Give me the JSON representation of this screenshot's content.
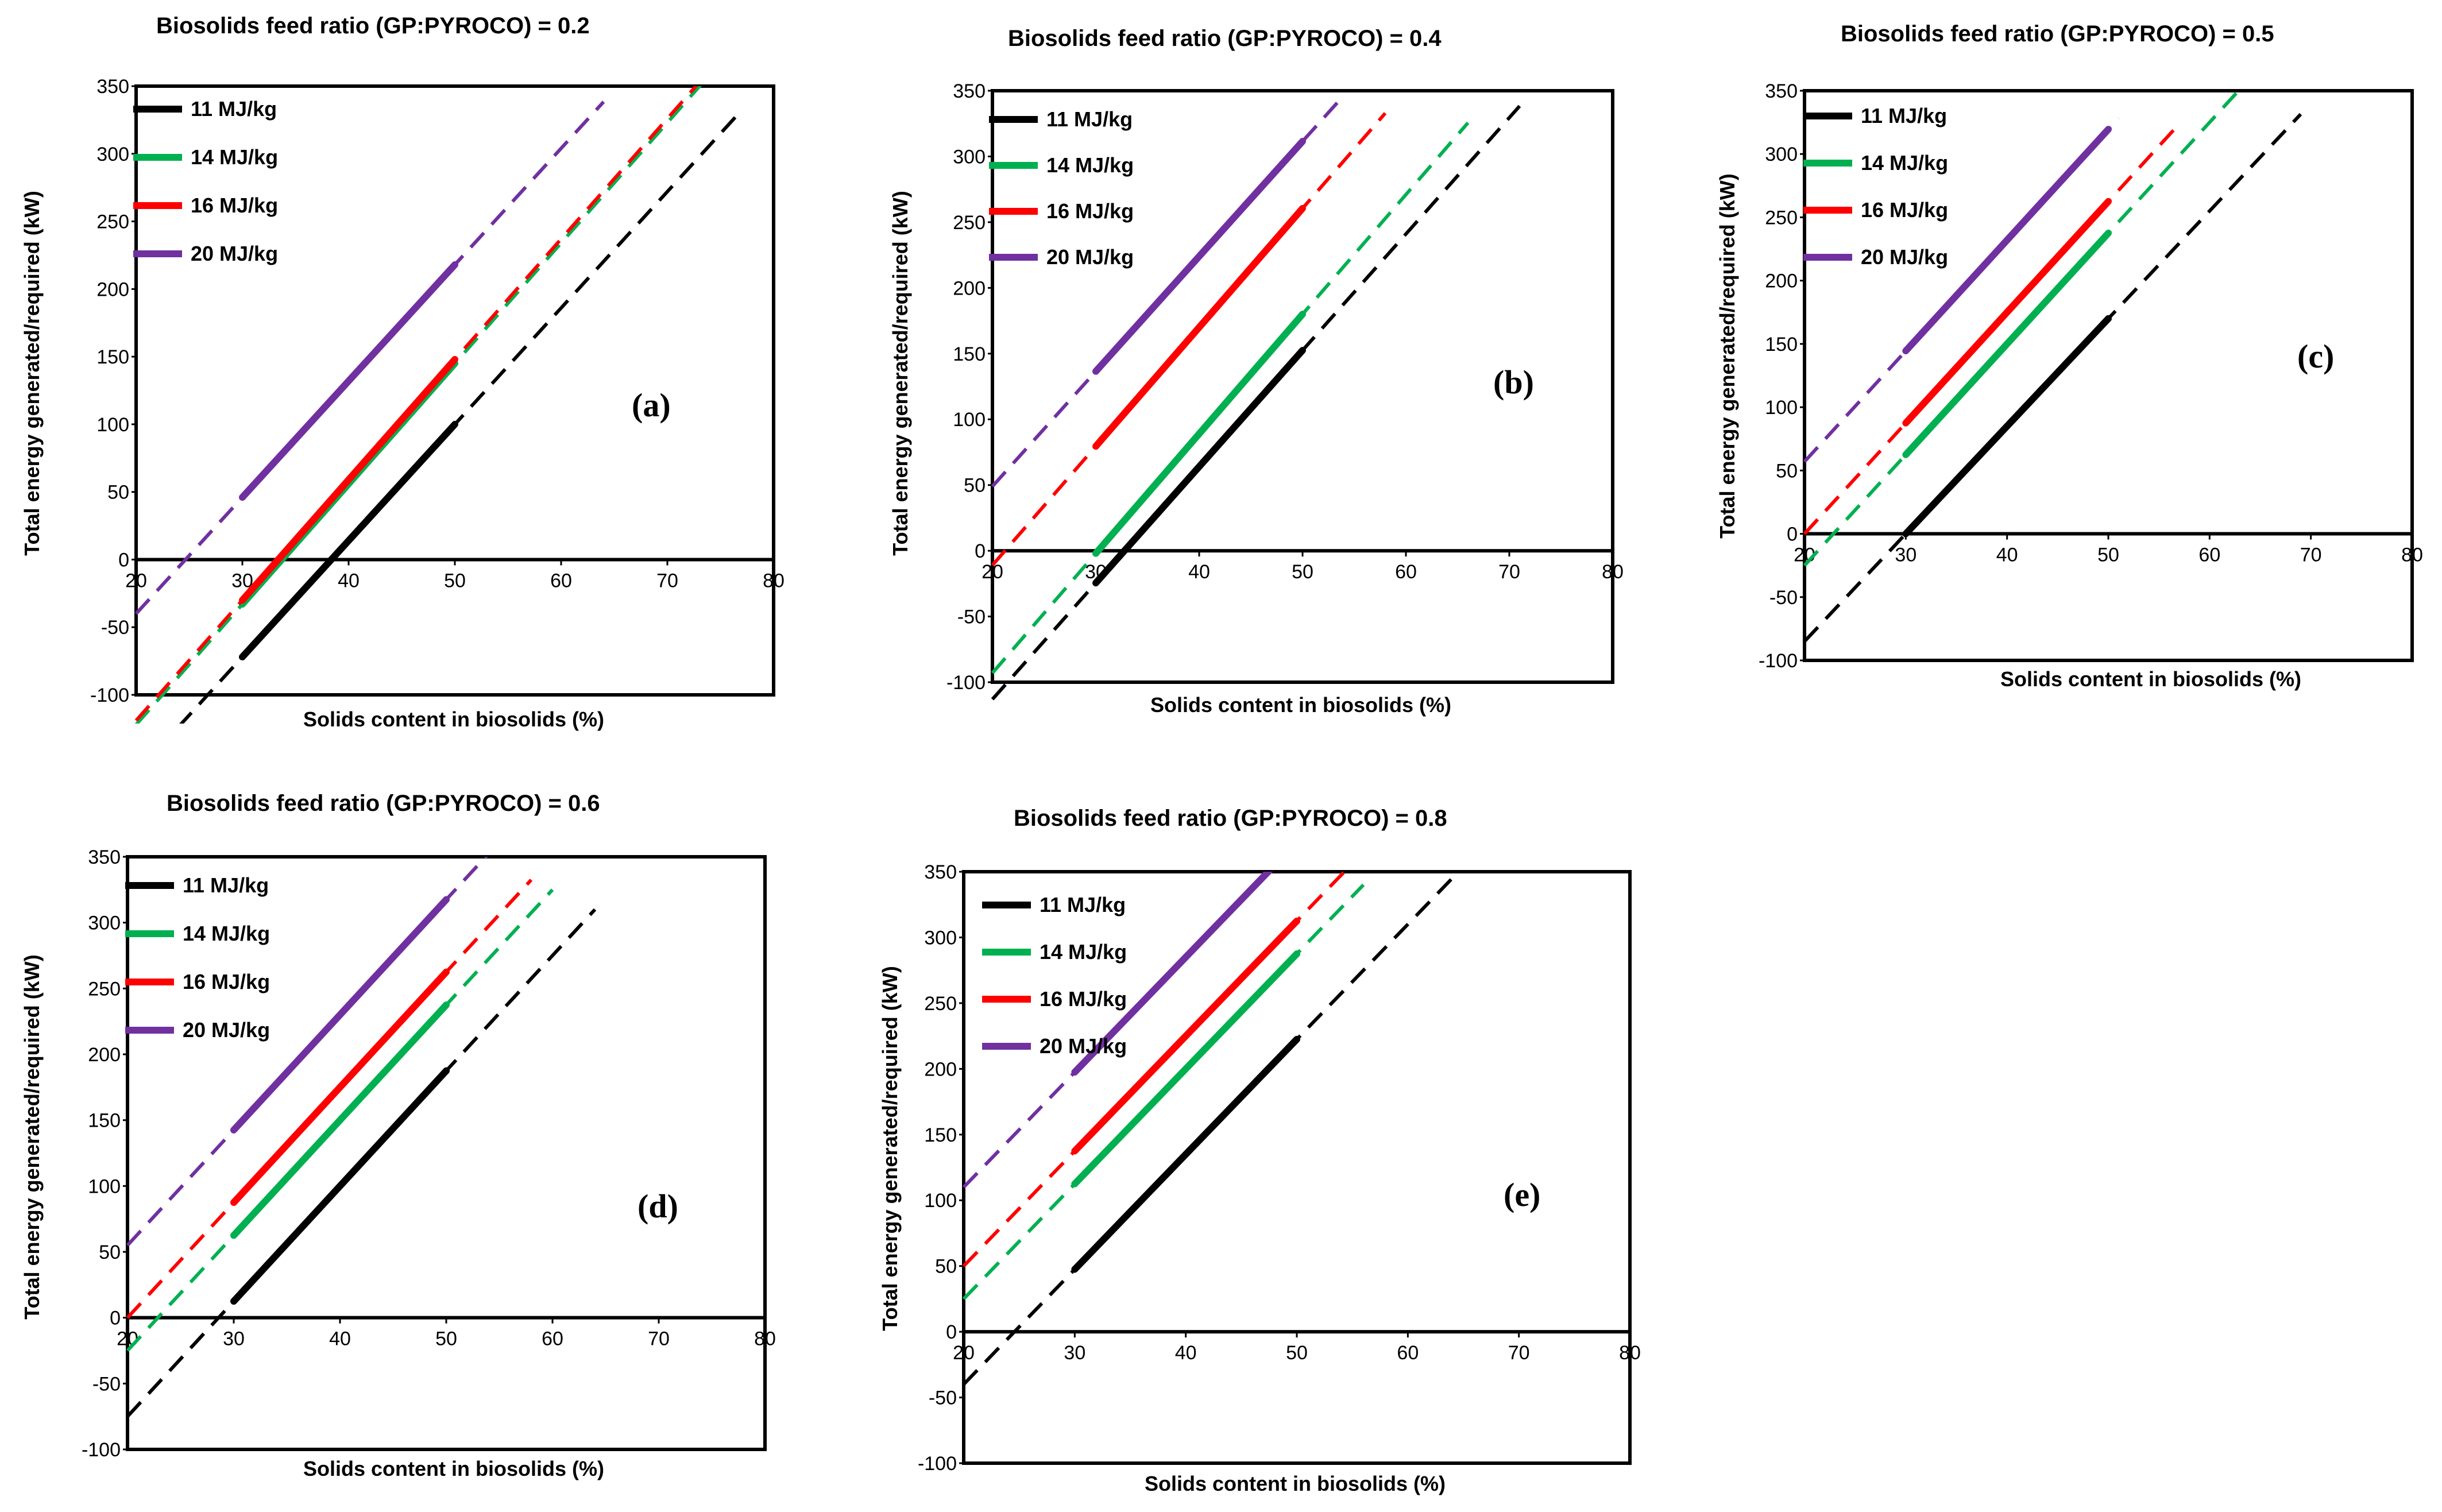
{
  "legend": {
    "labels": [
      "11 MJ/kg",
      "14 MJ/kg",
      "16 MJ/kg",
      "20 MJ/kg"
    ],
    "colors": [
      "#000000",
      "#00b050",
      "#ff0000",
      "#7030a0"
    ]
  },
  "chart_data": [
    {
      "type": "line",
      "panel_label": "(a)",
      "title": "Biosolids feed ratio (GP:PYROCO) = 0.2",
      "xlabel": "Solids content in biosolids (%)",
      "ylabel": "Total energy generated/required (kW)",
      "xlim": [
        20,
        80
      ],
      "ylim": [
        -100,
        350
      ],
      "xticks": [
        20,
        30,
        40,
        50,
        60,
        70,
        80
      ],
      "yticks": [
        -100,
        -50,
        0,
        50,
        100,
        150,
        200,
        250,
        300,
        350
      ],
      "solid_range": [
        30,
        50
      ],
      "series": [
        {
          "name": "11 MJ/kg",
          "slope": 8.6,
          "intercept": -330,
          "dashed_range": [
            22,
            77
          ]
        },
        {
          "name": "14 MJ/kg",
          "slope": 8.9,
          "intercept": -300,
          "dashed_range": [
            20,
            74
          ]
        },
        {
          "name": "16 MJ/kg",
          "slope": 8.9,
          "intercept": -297,
          "dashed_range": [
            20,
            73
          ]
        },
        {
          "name": "20 MJ/kg",
          "slope": 8.6,
          "intercept": -212,
          "dashed_range": [
            20,
            64
          ]
        }
      ]
    },
    {
      "type": "line",
      "panel_label": "(b)",
      "title": "Biosolids feed ratio (GP:PYROCO) = 0.4",
      "xlabel": "Solids content in biosolids (%)",
      "ylabel": "Total energy generated/required (kW)",
      "xlim": [
        20,
        80
      ],
      "ylim": [
        -100,
        350
      ],
      "xticks": [
        20,
        30,
        40,
        50,
        60,
        70,
        80
      ],
      "yticks": [
        -100,
        -50,
        0,
        50,
        100,
        150,
        200,
        250,
        300,
        350
      ],
      "solid_range": [
        30,
        50
      ],
      "series": [
        {
          "name": "11 MJ/kg",
          "slope": 8.85,
          "intercept": -290,
          "dashed_range": [
            20,
            71
          ]
        },
        {
          "name": "14 MJ/kg",
          "slope": 9.1,
          "intercept": -275,
          "dashed_range": [
            20,
            66
          ]
        },
        {
          "name": "16 MJ/kg",
          "slope": 9.05,
          "intercept": -192,
          "dashed_range": [
            20,
            58
          ]
        },
        {
          "name": "20 MJ/kg",
          "slope": 8.75,
          "intercept": -126,
          "dashed_range": [
            20,
            54
          ]
        }
      ]
    },
    {
      "type": "line",
      "panel_label": "(c)",
      "title": "Biosolids feed ratio (GP:PYROCO) = 0.5",
      "xlabel": "Solids content in biosolids (%)",
      "ylabel": "Total energy generated/required (kW)",
      "xlim": [
        20,
        80
      ],
      "ylim": [
        -100,
        350
      ],
      "xticks": [
        20,
        30,
        40,
        50,
        60,
        70,
        80
      ],
      "yticks": [
        -100,
        -50,
        0,
        50,
        100,
        150,
        200,
        250,
        300,
        350
      ],
      "solid_range": [
        30,
        50
      ],
      "series": [
        {
          "name": "11 MJ/kg",
          "slope": 8.5,
          "intercept": -255,
          "dashed_range": [
            20,
            69
          ]
        },
        {
          "name": "14 MJ/kg",
          "slope": 8.75,
          "intercept": -200,
          "dashed_range": [
            20,
            63
          ]
        },
        {
          "name": "16 MJ/kg",
          "slope": 8.75,
          "intercept": -175,
          "dashed_range": [
            20,
            57
          ]
        },
        {
          "name": "20 MJ/kg",
          "slope": 8.75,
          "intercept": -118,
          "dashed_range": [
            20,
            51
          ]
        }
      ]
    },
    {
      "type": "line",
      "panel_label": "(d)",
      "title": "Biosolids feed ratio (GP:PYROCO) = 0.6",
      "xlabel": "Solids content in biosolids (%)",
      "ylabel": "Total energy generated/required (kW)",
      "xlim": [
        20,
        80
      ],
      "ylim": [
        -100,
        350
      ],
      "xticks": [
        20,
        30,
        40,
        50,
        60,
        70,
        80
      ],
      "yticks": [
        -100,
        -50,
        0,
        50,
        100,
        150,
        200,
        250,
        300,
        350
      ],
      "solid_range": [
        30,
        50
      ],
      "series": [
        {
          "name": "11 MJ/kg",
          "slope": 8.75,
          "intercept": -250,
          "dashed_range": [
            20,
            64
          ]
        },
        {
          "name": "14 MJ/kg",
          "slope": 8.75,
          "intercept": -200,
          "dashed_range": [
            20,
            60
          ]
        },
        {
          "name": "16 MJ/kg",
          "slope": 8.75,
          "intercept": -175,
          "dashed_range": [
            20,
            58
          ]
        },
        {
          "name": "20 MJ/kg",
          "slope": 8.75,
          "intercept": -120,
          "dashed_range": [
            20,
            54
          ]
        }
      ]
    },
    {
      "type": "line",
      "panel_label": "(e)",
      "title": "Biosolids feed ratio (GP:PYROCO) = 0.8",
      "xlabel": "Solids content in biosolids (%)",
      "ylabel": "Total energy generated/required (kW)",
      "xlim": [
        20,
        80
      ],
      "ylim": [
        -100,
        350
      ],
      "xticks": [
        20,
        30,
        40,
        50,
        60,
        70,
        80
      ],
      "yticks": [
        -100,
        -50,
        0,
        50,
        100,
        150,
        200,
        250,
        300,
        350
      ],
      "solid_range": [
        30,
        50
      ],
      "series": [
        {
          "name": "11 MJ/kg",
          "slope": 8.75,
          "intercept": -215,
          "dashed_range": [
            20,
            65
          ]
        },
        {
          "name": "14 MJ/kg",
          "slope": 8.75,
          "intercept": -150,
          "dashed_range": [
            20,
            56
          ]
        },
        {
          "name": "16 MJ/kg",
          "slope": 8.75,
          "intercept": -125,
          "dashed_range": [
            20,
            55
          ]
        },
        {
          "name": "20 MJ/kg",
          "slope": 8.75,
          "intercept": -65,
          "dashed_range": [
            20,
            47
          ]
        }
      ]
    }
  ]
}
